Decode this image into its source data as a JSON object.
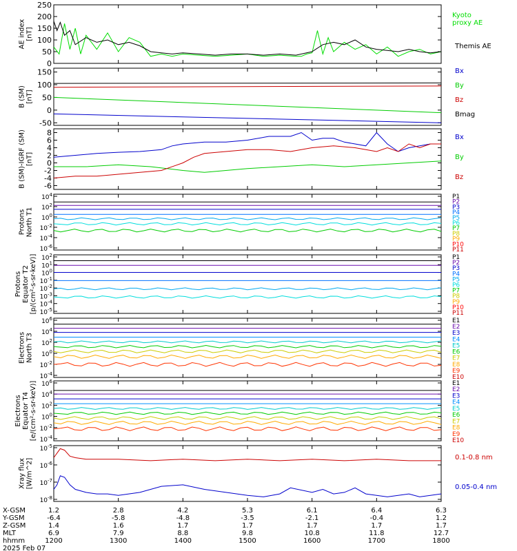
{
  "chart_data": [
    {
      "type": "line",
      "ylabel": "AE index [nT]",
      "yticks": [
        "250",
        "200",
        "150",
        "100",
        "50",
        "0"
      ],
      "ylim": [
        0,
        250
      ],
      "series": [
        {
          "name": "Kyoto proxy AE",
          "color": "#00dd00",
          "x": [
            1200,
            1205,
            1210,
            1215,
            1220,
            1225,
            1230,
            1240,
            1250,
            1300,
            1310,
            1320,
            1330,
            1340,
            1350,
            1400,
            1415,
            1430,
            1445,
            1500,
            1515,
            1530,
            1545,
            1550,
            1555,
            1600,
            1605,
            1610,
            1615,
            1620,
            1630,
            1640,
            1650,
            1700,
            1710,
            1720,
            1730,
            1740,
            1750,
            1800
          ],
          "y": [
            70,
            40,
            170,
            60,
            150,
            40,
            120,
            60,
            130,
            50,
            110,
            90,
            30,
            40,
            30,
            40,
            35,
            30,
            35,
            40,
            30,
            35,
            30,
            30,
            40,
            45,
            140,
            40,
            110,
            50,
            90,
            60,
            80,
            40,
            70,
            30,
            50,
            60,
            40,
            50
          ]
        },
        {
          "name": "Themis AE",
          "color": "#000000",
          "x": [
            1200,
            1203,
            1206,
            1210,
            1215,
            1220,
            1230,
            1240,
            1250,
            1300,
            1310,
            1320,
            1330,
            1340,
            1350,
            1400,
            1415,
            1430,
            1445,
            1500,
            1515,
            1530,
            1545,
            1600,
            1610,
            1620,
            1630,
            1640,
            1650,
            1700,
            1710,
            1720,
            1730,
            1740,
            1750,
            1800
          ],
          "y": [
            180,
            140,
            175,
            120,
            140,
            80,
            110,
            90,
            100,
            80,
            90,
            75,
            50,
            45,
            40,
            45,
            40,
            35,
            40,
            40,
            35,
            40,
            35,
            50,
            80,
            90,
            80,
            100,
            70,
            60,
            55,
            50,
            60,
            50,
            45,
            50
          ]
        }
      ]
    },
    {
      "type": "line",
      "ylabel": "B (SM) [nT]",
      "yticks": [
        "150",
        "100",
        "50",
        "0",
        "-50"
      ],
      "ylim": [
        -60,
        165
      ],
      "series": [
        {
          "name": "Bx",
          "color": "#0000cc",
          "x": [
            1200,
            1800
          ],
          "y": [
            -15,
            -50
          ]
        },
        {
          "name": "By",
          "color": "#00cc00",
          "x": [
            1200,
            1800
          ],
          "y": [
            50,
            -10
          ]
        },
        {
          "name": "Bz",
          "color": "#cc0000",
          "x": [
            1200,
            1800
          ],
          "y": [
            90,
            95
          ]
        },
        {
          "name": "Bmag",
          "color": "#000000",
          "x": [
            1200,
            1800
          ],
          "y": [
            105,
            107
          ]
        }
      ]
    },
    {
      "type": "line",
      "ylabel": "B (SM)-IGRF (SM) [nT]",
      "yticks": [
        "8",
        "6",
        "4",
        "2",
        "0",
        "-2",
        "-4",
        "-6"
      ],
      "ylim": [
        -7,
        9
      ],
      "series": [
        {
          "name": "Bx",
          "color": "#0000cc",
          "x": [
            1200,
            1220,
            1240,
            1300,
            1320,
            1340,
            1350,
            1400,
            1420,
            1440,
            1500,
            1520,
            1540,
            1550,
            1555,
            1600,
            1610,
            1620,
            1630,
            1640,
            1650,
            1700,
            1710,
            1720,
            1730,
            1740,
            1750,
            1800
          ],
          "y": [
            1.5,
            2,
            2.5,
            2.8,
            3,
            3.5,
            4.5,
            5,
            5.5,
            5.5,
            6,
            7,
            7,
            8,
            7,
            6,
            6.5,
            6.5,
            5.5,
            5,
            4.5,
            8,
            5,
            3,
            4,
            4.5,
            5,
            5
          ]
        },
        {
          "name": "By",
          "color": "#00cc00",
          "x": [
            1200,
            1230,
            1300,
            1330,
            1400,
            1420,
            1440,
            1500,
            1530,
            1600,
            1630,
            1700,
            1730,
            1800
          ],
          "y": [
            -1,
            -1,
            -0.5,
            -1,
            -2,
            -2.5,
            -2,
            -1.5,
            -1,
            -0.5,
            -1,
            -0.5,
            0,
            0.5
          ]
        },
        {
          "name": "Bz",
          "color": "#cc0000",
          "x": [
            1200,
            1220,
            1240,
            1300,
            1320,
            1340,
            1400,
            1410,
            1420,
            1440,
            1500,
            1520,
            1540,
            1600,
            1620,
            1640,
            1650,
            1700,
            1710,
            1720,
            1730,
            1740,
            1750,
            1800
          ],
          "y": [
            -4,
            -3.5,
            -3.5,
            -3,
            -2.5,
            -2,
            0,
            1.5,
            2.5,
            3,
            3.5,
            3.5,
            3,
            4,
            4.5,
            4,
            3.5,
            3,
            4,
            3,
            5,
            4,
            5,
            5
          ]
        }
      ]
    },
    {
      "type": "line",
      "ylabel": "Protons North T1",
      "yticks": [
        "10^4",
        "10^2",
        "10^0",
        "10^-2",
        "10^-4",
        "10^-6"
      ],
      "channels": [
        "P1",
        "P2",
        "P3",
        "P4",
        "P5",
        "P6",
        "P7",
        "P8",
        "P9",
        "P10",
        "P11"
      ],
      "channel_colors": [
        "#000000",
        "#6a0dad",
        "#0000cc",
        "#0070ff",
        "#00aaee",
        "#00dddd",
        "#00cc00",
        "#cccc00",
        "#ffaa00",
        "#ff0000",
        "#cc0000"
      ]
    },
    {
      "type": "line",
      "ylabel": "Protons Equator T2 [p/(cm²-s-sr-keV)]",
      "yticks": [
        "10^2",
        "10^1",
        "10^0",
        "10^-1",
        "10^-2",
        "10^-3",
        "10^-4",
        "10^-5"
      ],
      "channels": [
        "P1",
        "P2",
        "P3",
        "P4",
        "P5",
        "P6",
        "P7",
        "P8",
        "P9",
        "P10",
        "P11"
      ],
      "channel_colors": [
        "#000000",
        "#6a0dad",
        "#0000cc",
        "#0070ff",
        "#00aaee",
        "#00dddd",
        "#00cc00",
        "#cccc00",
        "#ffaa00",
        "#ff0000",
        "#cc0000"
      ]
    },
    {
      "type": "line",
      "ylabel": "Electrons North T3",
      "yticks": [
        "10^6",
        "10^4",
        "10^2",
        "10^0",
        "10^-2",
        "10^-4"
      ],
      "channels": [
        "E1",
        "E2",
        "E3",
        "E4",
        "E5",
        "E6",
        "E7",
        "E8",
        "E9",
        "E10"
      ],
      "channel_colors": [
        "#000000",
        "#6a0dad",
        "#0000cc",
        "#0090ff",
        "#00cccc",
        "#00cc00",
        "#cccc00",
        "#ffaa00",
        "#ff3300",
        "#cc0000"
      ]
    },
    {
      "type": "line",
      "ylabel": "Electrons Equator T4 [e/(cm²-s-sr-keV)]",
      "yticks": [
        "10^6",
        "10^4",
        "10^2",
        "10^0",
        "10^-2",
        "10^-4"
      ],
      "channels": [
        "E1",
        "E2",
        "E3",
        "E4",
        "E5",
        "E6",
        "E7",
        "E8",
        "E9",
        "E10"
      ],
      "channel_colors": [
        "#000000",
        "#6a0dad",
        "#0000cc",
        "#0090ff",
        "#00cccc",
        "#00cc00",
        "#cccc00",
        "#ffaa00",
        "#ff3300",
        "#cc0000"
      ]
    },
    {
      "type": "line",
      "ylabel": "Xray flux [W/m^2]",
      "yticks": [
        "10^-5",
        "10^-6",
        "10^-7",
        "10^-8"
      ],
      "series": [
        {
          "name": "0.1-0.8 nm",
          "color": "#cc0000",
          "x": [
            1200,
            1203,
            1206,
            1210,
            1215,
            1220,
            1230,
            1300,
            1330,
            1400,
            1430,
            1500,
            1530,
            1600,
            1630,
            1700,
            1730,
            1800
          ],
          "y": [
            -5.7,
            -5.4,
            -5.1,
            -5.2,
            -5.6,
            -5.7,
            -5.8,
            -5.8,
            -5.9,
            -5.8,
            -5.9,
            -5.8,
            -5.9,
            -5.8,
            -5.9,
            -5.8,
            -5.9,
            -5.9
          ]
        },
        {
          "name": "0.05-0.4 nm",
          "color": "#0000cc",
          "x": [
            1200,
            1203,
            1206,
            1210,
            1215,
            1220,
            1230,
            1240,
            1250,
            1300,
            1320,
            1340,
            1400,
            1420,
            1440,
            1500,
            1515,
            1530,
            1540,
            1600,
            1610,
            1620,
            1630,
            1640,
            1650,
            1700,
            1710,
            1720,
            1730,
            1740,
            1750,
            1800
          ],
          "y": [
            -7.8,
            -7.5,
            -6.9,
            -7,
            -7.5,
            -7.8,
            -8,
            -8.1,
            -8.1,
            -8.2,
            -8.0,
            -7.6,
            -7.5,
            -7.8,
            -8.0,
            -8.2,
            -8.3,
            -8.1,
            -7.7,
            -8.0,
            -7.8,
            -8.1,
            -8.0,
            -7.7,
            -8.1,
            -8.2,
            -8.3,
            -8.2,
            -8.1,
            -8.3,
            -8.2,
            -8.1
          ]
        }
      ]
    }
  ],
  "orbit": {
    "row_labels": [
      "X-GSM",
      "Y-GSM",
      "Z-GSM",
      "MLT",
      "hhmm"
    ],
    "date_label": "2025 Feb 07",
    "columns": [
      {
        "x": "1.2",
        "y": "-6.4",
        "z": "1.4",
        "mlt": "6.9",
        "hhmm": "1200"
      },
      {
        "x": "2.8",
        "y": "-5.8",
        "z": "1.6",
        "mlt": "7.9",
        "hhmm": "1300"
      },
      {
        "x": "4.2",
        "y": "-4.8",
        "z": "1.7",
        "mlt": "8.8",
        "hhmm": "1400"
      },
      {
        "x": "5.3",
        "y": "-3.5",
        "z": "1.7",
        "mlt": "9.8",
        "hhmm": "1500"
      },
      {
        "x": "6.1",
        "y": "-2.1",
        "z": "1.7",
        "mlt": "10.8",
        "hhmm": "1600"
      },
      {
        "x": "6.4",
        "y": "-0.4",
        "z": "1.7",
        "mlt": "11.8",
        "hhmm": "1700"
      },
      {
        "x": "6.3",
        "y": "1.2",
        "z": "1.7",
        "mlt": "12.7",
        "hhmm": "1800"
      }
    ]
  },
  "colors": {
    "axis": "#000000",
    "background": "#ffffff"
  }
}
